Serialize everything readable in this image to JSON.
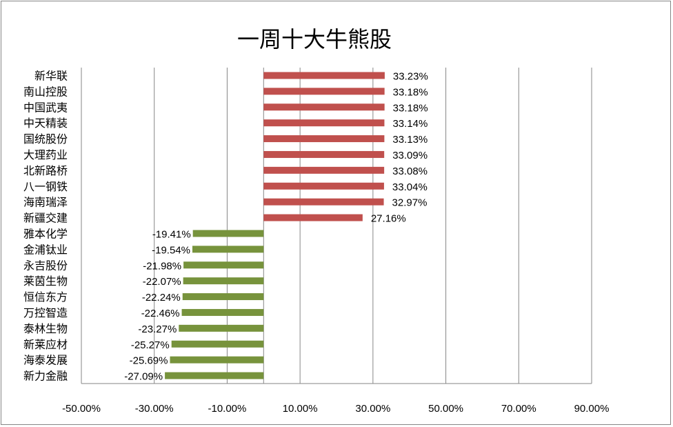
{
  "chart_data": {
    "type": "bar",
    "orientation": "horizontal",
    "title": "一周十大牛熊股",
    "categories": [
      "新华联",
      "南山控股",
      "中国武夷",
      "中天精装",
      "国统股份",
      "大理药业",
      "北新路桥",
      "八一钢铁",
      "海南瑞泽",
      "新疆交建",
      "雅本化学",
      "金浦钛业",
      "永吉股份",
      "莱茵生物",
      "恒信东方",
      "万控智造",
      "泰林生物",
      "新莱应材",
      "海泰发展",
      "新力金融"
    ],
    "values": [
      33.23,
      33.18,
      33.18,
      33.14,
      33.13,
      33.09,
      33.08,
      33.04,
      32.97,
      27.16,
      -19.41,
      -19.54,
      -21.98,
      -22.07,
      -22.24,
      -22.46,
      -23.27,
      -25.27,
      -25.69,
      -27.09
    ],
    "data_labels": [
      "33.23%",
      "33.18%",
      "33.18%",
      "33.14%",
      "33.13%",
      "33.09%",
      "33.08%",
      "33.04%",
      "32.97%",
      "27.16%",
      "-19.41%",
      "-19.54%",
      "-21.98%",
      "-22.07%",
      "-22.24%",
      "-22.46%",
      "-23.27%",
      "-25.27%",
      "-25.69%",
      "-27.09%"
    ],
    "xlim": [
      -50,
      90
    ],
    "x_ticks": [
      -50,
      -30,
      -10,
      10,
      30,
      50,
      70,
      90
    ],
    "x_tick_labels": [
      "-50.00%",
      "-30.00%",
      "-10.00%",
      "10.00%",
      "30.00%",
      "50.00%",
      "70.00%",
      "90.00%"
    ],
    "grid": "vertical",
    "legend": "none",
    "colors": {
      "positive": "#C0504D",
      "negative": "#77933C",
      "grid": "#868686"
    }
  }
}
